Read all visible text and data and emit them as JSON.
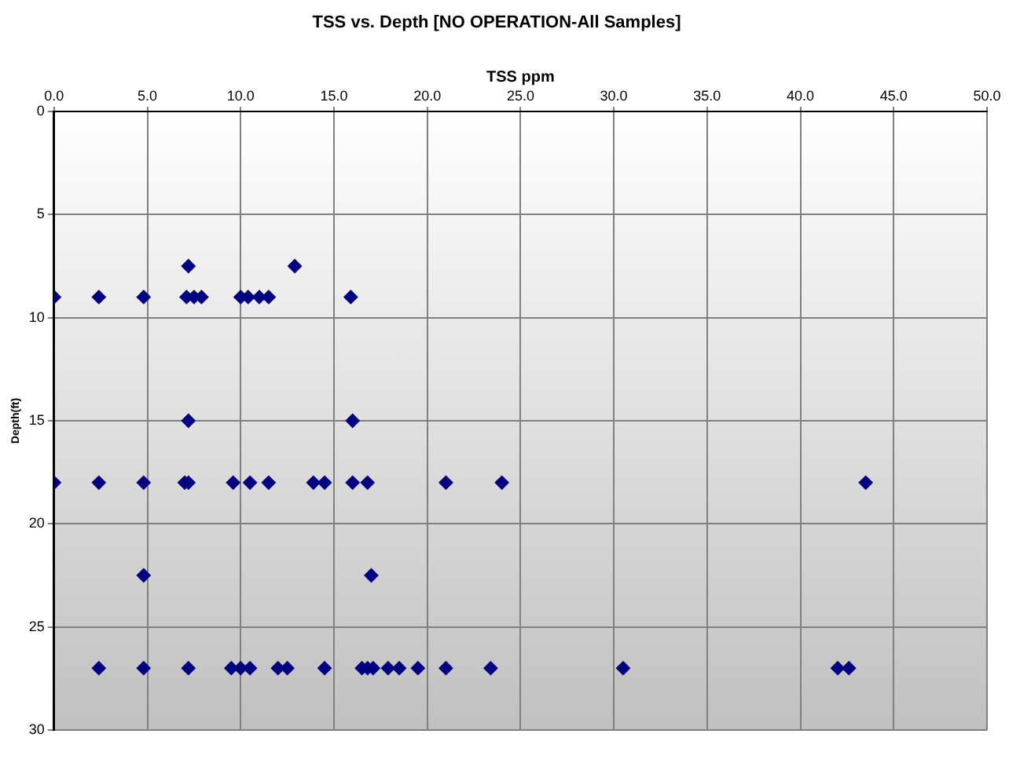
{
  "chart_data": {
    "type": "scatter",
    "title": "TSS vs. Depth [NO OPERATION-All Samples]",
    "xlabel": "TSS ppm",
    "ylabel": "Depth(ft)",
    "series": [
      {
        "color": "#000080",
        "x": [
          7.2,
          12.9,
          0,
          2.4,
          4.8,
          7.1,
          7.5,
          7.9,
          10.0,
          10.4,
          11.0,
          11.5,
          15.9,
          7.2,
          16.0,
          0,
          2.4,
          4.8,
          7.0,
          7.2,
          9.6,
          10.5,
          11.5,
          13.9,
          14.5,
          16.0,
          16.8,
          21.0,
          24.0,
          43.5,
          4.8,
          17.0,
          2.4,
          4.8,
          7.2,
          9.5,
          10.0,
          10.5,
          12.0,
          12.5,
          14.5,
          16.5,
          16.8,
          17.1,
          17.9,
          18.5,
          19.5,
          21.0,
          23.4,
          30.5,
          42.0,
          42.6
        ],
        "values": [
          7.5,
          7.5,
          9,
          9,
          9,
          9,
          9,
          9,
          9,
          9,
          9,
          9,
          9,
          15,
          15,
          18,
          18,
          18,
          18,
          18,
          18,
          18,
          18,
          18,
          18,
          18,
          18,
          18,
          18,
          18,
          22.5,
          22.5,
          27,
          27,
          27,
          27,
          27,
          27,
          27,
          27,
          27,
          27,
          27,
          27,
          27,
          27,
          27,
          27,
          27,
          27,
          27,
          27
        ]
      }
    ],
    "xlim": [
      0,
      50
    ],
    "xticks": [
      {
        "value": 0,
        "label": "0.0"
      },
      {
        "value": 5,
        "label": "5.0"
      },
      {
        "value": 10,
        "label": "10.0"
      },
      {
        "value": 15,
        "label": "15.0"
      },
      {
        "value": 20,
        "label": "20.0"
      },
      {
        "value": 25,
        "label": "25.0"
      },
      {
        "value": 30,
        "label": "30.0"
      },
      {
        "value": 35,
        "label": "35.0"
      },
      {
        "value": 40,
        "label": "40.0"
      },
      {
        "value": 45,
        "label": "45.0"
      },
      {
        "value": 50,
        "label": "50.0"
      }
    ],
    "ylim": [
      30,
      0
    ],
    "yticks": [
      0,
      5,
      10,
      15,
      20,
      25,
      30
    ],
    "grid": true,
    "legend": false,
    "marker": "diamond"
  }
}
